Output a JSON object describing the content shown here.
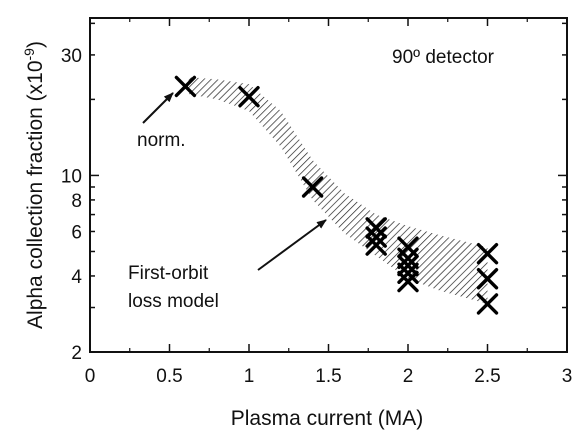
{
  "chart_data": {
    "type": "scatter",
    "title": "",
    "xlabel": "Plasma current (MA)",
    "ylabel": "Alpha collection fraction (x10",
    "ylabel_exponent": "-9",
    "ylabel_close": ")",
    "xlim": [
      0,
      3
    ],
    "ylim": [
      2,
      42
    ],
    "y_scale": "log",
    "grid": false,
    "x_ticks": [
      0,
      0.5,
      1,
      1.5,
      2,
      2.5,
      3
    ],
    "x_tick_labels": [
      "0",
      "0.5",
      "1",
      "1.5",
      "2",
      "2.5",
      "3"
    ],
    "y_ticks": [
      2,
      4,
      6,
      8,
      10,
      30
    ],
    "y_tick_labels": [
      "2",
      "4",
      "6",
      "8",
      "10",
      "30"
    ],
    "series": [
      {
        "marker": "x",
        "points": [
          {
            "x": 0.6,
            "y": 22.5
          },
          {
            "x": 1.0,
            "y": 20.5
          },
          {
            "x": 1.4,
            "y": 9.0
          },
          {
            "x": 1.8,
            "y": 6.2
          },
          {
            "x": 1.8,
            "y": 5.7
          },
          {
            "x": 1.8,
            "y": 5.3
          },
          {
            "x": 2.0,
            "y": 5.2
          },
          {
            "x": 2.0,
            "y": 4.7
          },
          {
            "x": 2.0,
            "y": 4.4
          },
          {
            "x": 2.0,
            "y": 4.1
          },
          {
            "x": 2.0,
            "y": 3.8
          },
          {
            "x": 2.5,
            "y": 4.9
          },
          {
            "x": 2.5,
            "y": 3.9
          },
          {
            "x": 2.5,
            "y": 3.1
          }
        ]
      }
    ],
    "model_band": {
      "upper": [
        [
          0.62,
          24.5
        ],
        [
          0.8,
          24.0
        ],
        [
          1.0,
          23.0
        ],
        [
          1.2,
          18.0
        ],
        [
          1.4,
          11.5
        ],
        [
          1.6,
          8.5
        ],
        [
          1.8,
          7.0
        ],
        [
          2.0,
          6.3
        ],
        [
          2.2,
          5.8
        ],
        [
          2.5,
          5.2
        ]
      ],
      "lower": [
        [
          0.62,
          21.0
        ],
        [
          0.8,
          20.0
        ],
        [
          1.0,
          18.0
        ],
        [
          1.2,
          13.0
        ],
        [
          1.4,
          8.0
        ],
        [
          1.6,
          5.9
        ],
        [
          1.8,
          4.8
        ],
        [
          2.0,
          3.9
        ],
        [
          2.2,
          3.5
        ],
        [
          2.5,
          3.1
        ]
      ]
    },
    "annotations": {
      "detector": "90º detector",
      "norm": "norm.",
      "model_line1": "First-orbit",
      "model_line2": "loss model"
    }
  }
}
